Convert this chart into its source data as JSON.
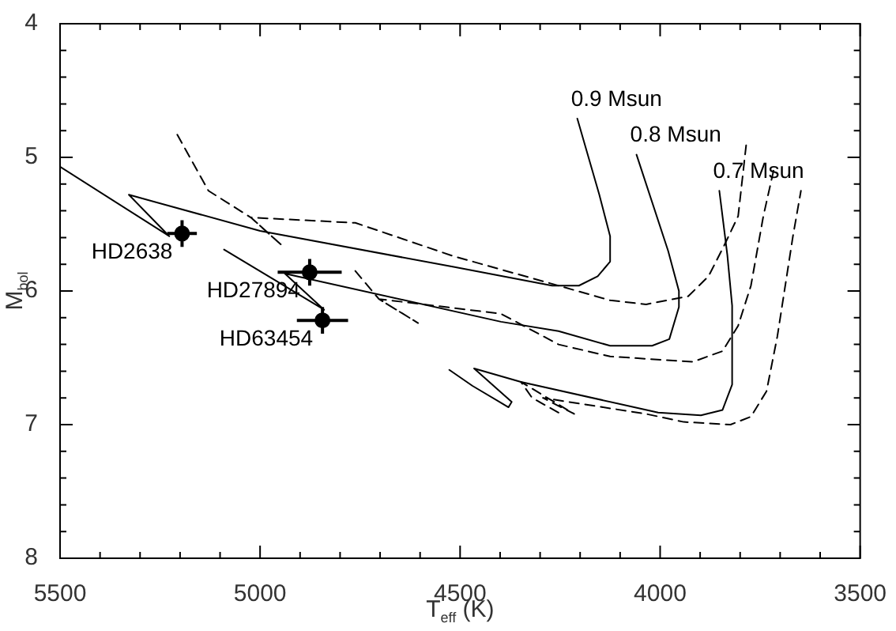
{
  "chart_data": {
    "type": "line",
    "xlabel": "T$_{eff}$ (K)",
    "ylabel": "M$_{bol}$",
    "xlim": [
      5500,
      3500
    ],
    "ylim": [
      8,
      4
    ],
    "xticks": [
      5500,
      {
        "value": 5400,
        "label": null
      },
      {
        "value": 5300,
        "label": null
      },
      {
        "value": 5200,
        "label": null
      },
      {
        "value": 5100,
        "label": null
      },
      5000,
      {
        "value": 4900,
        "label": null
      },
      {
        "value": 4800,
        "label": null
      },
      {
        "value": 4700,
        "label": null
      },
      {
        "value": 4600,
        "label": null
      },
      4500,
      {
        "value": 4400,
        "label": null
      },
      {
        "value": 4300,
        "label": null
      },
      {
        "value": 4200,
        "label": null
      },
      {
        "value": 4100,
        "label": null
      },
      4000,
      {
        "value": 3900,
        "label": null
      },
      {
        "value": 3800,
        "label": null
      },
      {
        "value": 3700,
        "label": null
      },
      {
        "value": 3600,
        "label": null
      },
      3500
    ],
    "yticks": [
      4,
      {
        "value": 4.2,
        "label": null
      },
      {
        "value": 4.4,
        "label": null
      },
      {
        "value": 4.6,
        "label": null
      },
      {
        "value": 4.8,
        "label": null
      },
      5,
      {
        "value": 5.2,
        "label": null
      },
      {
        "value": 5.4,
        "label": null
      },
      {
        "value": 5.6,
        "label": null
      },
      {
        "value": 5.8,
        "label": null
      },
      6,
      {
        "value": 6.2,
        "label": null
      },
      {
        "value": 6.4,
        "label": null
      },
      {
        "value": 6.6,
        "label": null
      },
      {
        "value": 6.8,
        "label": null
      },
      7,
      {
        "value": 7.2,
        "label": null
      },
      {
        "value": 7.4,
        "label": null
      },
      {
        "value": 7.6,
        "label": null
      },
      {
        "value": 7.8,
        "label": null
      },
      8
    ],
    "series": [
      {
        "name": "0.9 Msun",
        "type": "line",
        "color": "#000000",
        "line_style": "solid",
        "marker": "none",
        "x": [
          5500,
          5227,
          5328,
          5000,
          4516,
          4270,
          4203,
          4156,
          4125,
          4125,
          4152,
          4207
        ],
        "values": [
          5.07,
          5.59,
          5.28,
          5.55,
          5.82,
          5.96,
          5.96,
          5.89,
          5.78,
          5.59,
          5.28,
          4.71
        ]
      },
      {
        "name": "0.8 Msun",
        "type": "line",
        "color": "#000000",
        "line_style": "solid",
        "marker": "none",
        "x": [
          5090,
          4840,
          4938,
          4398,
          4254,
          4125,
          4020,
          3977,
          3953,
          3953,
          3980,
          4059
        ],
        "values": [
          5.69,
          6.14,
          5.87,
          6.23,
          6.3,
          6.41,
          6.41,
          6.36,
          6.12,
          6.0,
          5.7,
          4.98
        ]
      },
      {
        "name": "0.7 Msun",
        "type": "line",
        "color": "#000000",
        "line_style": "solid",
        "marker": "none",
        "x": [
          4527,
          4469,
          4379,
          4371,
          4465,
          4348,
          4005,
          3898,
          3844,
          3820,
          3820,
          3832,
          3852
        ],
        "values": [
          6.59,
          6.71,
          6.87,
          6.83,
          6.58,
          6.68,
          6.91,
          6.93,
          6.89,
          6.7,
          6.11,
          5.73,
          5.25
        ]
      },
      {
        "type": "line",
        "color": "#000000",
        "line_style": "dashed",
        "marker": "none",
        "x": [
          5207,
          5129,
          5023,
          4945,
          5023,
          4762,
          4516,
          4254,
          4125,
          4035,
          3930,
          3879,
          3840,
          3805,
          3785
        ],
        "values": [
          4.83,
          5.25,
          5.45,
          5.66,
          5.45,
          5.49,
          5.74,
          5.96,
          6.07,
          6.1,
          6.04,
          5.89,
          5.66,
          5.44,
          4.91
        ]
      },
      {
        "type": "line",
        "color": "#000000",
        "line_style": "dashed",
        "marker": "none",
        "x": [
          4762,
          4703,
          4605,
          4703,
          4398,
          4254,
          4125,
          3918,
          3844,
          3805,
          3773,
          3742,
          3715
        ],
        "values": [
          5.85,
          6.06,
          6.24,
          6.06,
          6.17,
          6.4,
          6.49,
          6.53,
          6.45,
          6.26,
          5.96,
          5.44,
          5.08
        ]
      },
      {
        "type": "line",
        "color": "#000000",
        "line_style": "dashed",
        "marker": "none",
        "x": [
          4254,
          4320,
          4348,
          4215,
          4293,
          4035,
          3941,
          3824,
          3773,
          3734,
          3707,
          3668,
          3648
        ],
        "values": [
          6.91,
          6.8,
          6.68,
          6.92,
          6.8,
          6.92,
          6.98,
          7.0,
          6.94,
          6.75,
          6.34,
          5.59,
          5.25
        ]
      },
      {
        "name": "HD2638",
        "type": "scatter",
        "color": "#000000",
        "marker": "circle",
        "x": [
          5195
        ],
        "values": [
          5.57
        ],
        "errors": [
          0.1
        ],
        "xerrors": [
          37
        ]
      },
      {
        "name": "HD27894",
        "type": "scatter",
        "color": "#000000",
        "marker": "circle",
        "x": [
          4876
        ],
        "values": [
          5.86
        ],
        "errors": [
          0.1
        ],
        "xerrors": [
          80
        ]
      },
      {
        "name": "HD63454",
        "type": "scatter",
        "color": "#000000",
        "marker": "circle",
        "x": [
          4844
        ],
        "values": [
          6.22
        ],
        "errors": [
          0.1
        ],
        "xerrors": [
          64
        ]
      }
    ]
  }
}
